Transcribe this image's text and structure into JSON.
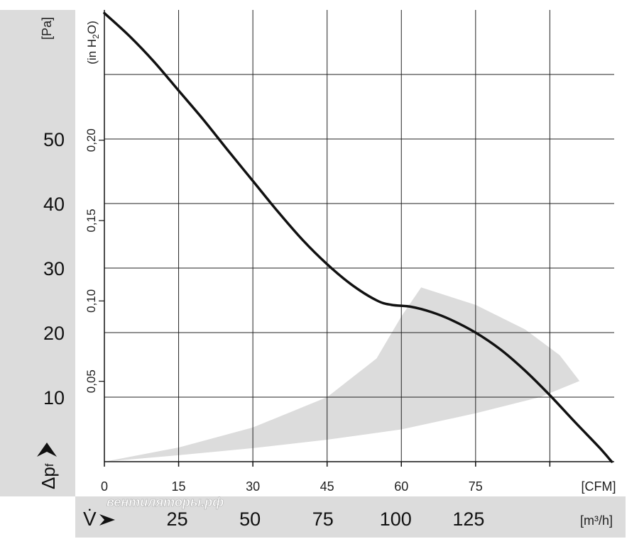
{
  "chart_data": {
    "type": "line",
    "y_axis_primary": {
      "unit": "[Pa]",
      "label": "Δp",
      "label_sub": "f",
      "ticks": [
        "10",
        "20",
        "30",
        "40",
        "50"
      ],
      "ylim": [
        0,
        70
      ]
    },
    "y_axis_secondary": {
      "unit": "(in H",
      "unit_sub": "2",
      "unit_end": "O)",
      "ticks": [
        "0,05",
        "0,10",
        "0,15",
        "0,20"
      ]
    },
    "x_axis_primary": {
      "unit": "[CFM]",
      "ticks": [
        "0",
        "15",
        "30",
        "45",
        "60",
        "75"
      ],
      "xlim": [
        0,
        103
      ]
    },
    "x_axis_secondary": {
      "label": "V̇",
      "unit": "[m³/h]",
      "ticks": [
        "25",
        "50",
        "75",
        "100",
        "125"
      ]
    },
    "series": [
      {
        "x": [
          0,
          5,
          10,
          15,
          20,
          25,
          30,
          35,
          40,
          45,
          50,
          55,
          58,
          62,
          66,
          70,
          75,
          80,
          85,
          90,
          95,
          100,
          102.5
        ],
        "y": [
          69.5,
          66,
          62,
          57.5,
          53,
          48.2,
          43.5,
          38.8,
          34.4,
          30.6,
          27.4,
          25,
          24.3,
          24,
          23.2,
          22,
          20,
          17.4,
          14.1,
          10.3,
          6.2,
          2.2,
          0
        ]
      }
    ],
    "operating_region": {
      "upper_x": [
        0,
        15,
        30,
        45,
        55,
        60,
        64
      ],
      "upper_y": [
        0,
        2.2,
        5.3,
        10,
        16,
        22.5,
        27
      ],
      "arc_x": [
        64,
        75,
        85,
        92,
        96
      ],
      "arc_y": [
        27,
        24.3,
        20.5,
        16.5,
        12.5
      ],
      "lower_x": [
        96,
        88,
        75,
        60,
        45,
        30,
        15,
        0
      ],
      "lower_y": [
        12.5,
        10,
        7.5,
        5,
        3.4,
        2.1,
        1,
        0
      ]
    },
    "grid": true,
    "watermark": "вентиляторы.рф",
    "colors": {
      "curve": "#111111",
      "region": "#dcdcdc",
      "band": "#dcdcdc",
      "grid": "#222222"
    }
  }
}
